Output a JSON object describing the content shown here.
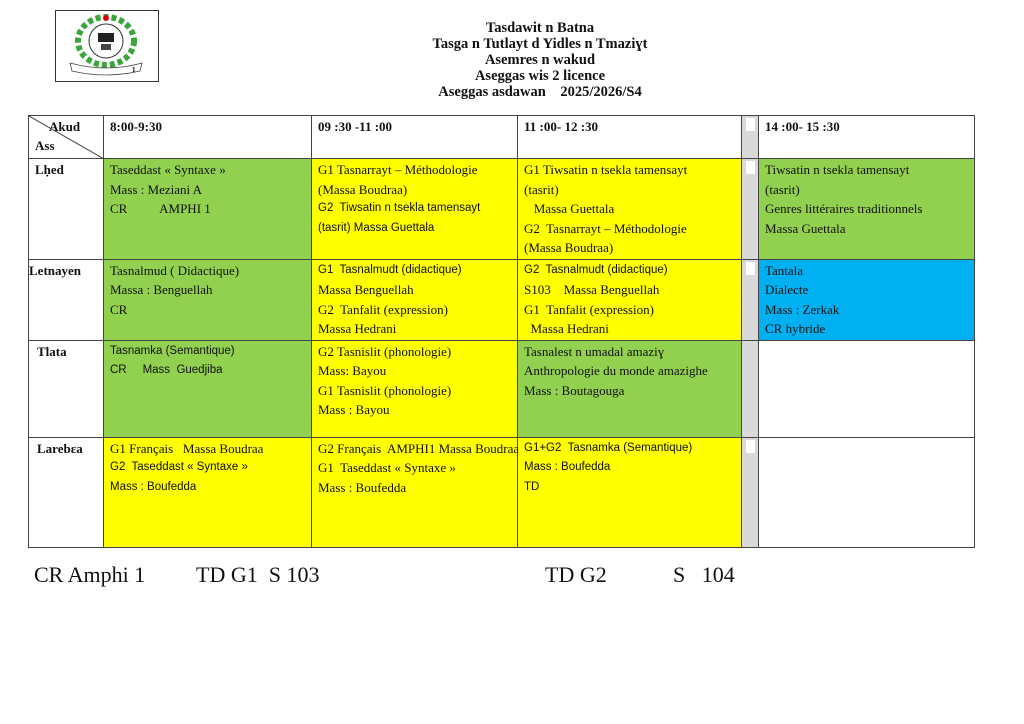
{
  "logo": {
    "text": "UNIVERSITE BATNA 1",
    "badge": "1"
  },
  "header": {
    "lines": [
      "Tasdawit n Batna",
      "Tasga n Tutlayt d Yidles n Tmaziɣt",
      "Asemres n wakud",
      "Aseggas wis 2 licence",
      "Aseggas asdawan    2025/2026/S4"
    ]
  },
  "table": {
    "corner": {
      "top": "Akud",
      "bottom": "Ass"
    },
    "columns": [
      "8:00-9:30",
      "09 :30 -11 :00",
      "11 :00- 12 :30",
      "14 :00- 15 :30"
    ],
    "colors": {
      "green": "#92d050",
      "yellow": "#ffff00",
      "blue": "#00b0f0",
      "gray": "#d9d9d9"
    },
    "rows": [
      {
        "day": "Lḥed",
        "cells": [
          {
            "color": "green",
            "lines": [
              "Taseddast « Syntaxe »",
              "Mass : Meziani A",
              "CR          AMPHI 1"
            ]
          },
          {
            "color": "yellow",
            "lines": [
              "G1 Tasnarrayt – Méthodologie",
              "(Massa Boudraa)",
              "G2  Tiwsatin n tsekla tamensayt",
              "(tasrit) Massa Guettala"
            ]
          },
          {
            "color": "yellow",
            "lines": [
              "G1 Tiwsatin n tsekla tamensayt",
              "(tasrit)",
              "   Massa Guettala",
              "G2  Tasnarrayt – Méthodologie",
              "(Massa Boudraa)"
            ]
          },
          {
            "color": "green",
            "lines": [
              "Tiwsatin n tsekla tamensayt",
              "(tasrit)",
              "Genres littéraires traditionnels",
              "Massa Guettala"
            ]
          }
        ]
      },
      {
        "day": "Letnayen",
        "cells": [
          {
            "color": "green",
            "lines": [
              "Tasnalmud ( Didactique)",
              "Massa : Benguellah",
              "CR"
            ]
          },
          {
            "color": "yellow",
            "lines": [
              "G1  Tasnalmudt (didactique)",
              "Massa Benguellah",
              "G2  Tanfalit (expression)",
              "Massa Hedrani"
            ]
          },
          {
            "color": "yellow",
            "lines": [
              "G2  Tasnalmudt (didactique)",
              "S103    Massa Benguellah",
              "G1  Tanfalit (expression)",
              "  Massa Hedrani"
            ]
          },
          {
            "color": "blue",
            "lines": [
              "Tantala",
              "Dialecte",
              "Mass : Zerkak",
              "CR hybride"
            ]
          }
        ]
      },
      {
        "day": "Tlata",
        "cells": [
          {
            "color": "green",
            "lines": [
              "Tasnamka (Semantique)",
              "CR     Mass  Guedjiba"
            ]
          },
          {
            "color": "yellow",
            "lines": [
              "G2 Tasnislit (phonologie)",
              "Mass: Bayou",
              "G1 Tasnislit (phonologie)",
              "Mass : Bayou"
            ]
          },
          {
            "color": "green",
            "lines": [
              "Tasnalest n umadal amaziɣ",
              "Anthropologie du monde amazighe",
              "Mass : Boutagouga"
            ]
          },
          {
            "color": "white",
            "lines": []
          }
        ]
      },
      {
        "day": "Larebɛa",
        "cells": [
          {
            "color": "yellow",
            "lines": [
              "G1 Français   Massa Boudraa",
              "G2  Taseddast « Syntaxe »",
              "Mass : Boufedda"
            ]
          },
          {
            "color": "yellow",
            "lines": [
              "G2 Français  AMPHI1 Massa Boudraa",
              "G1  Taseddast « Syntaxe »",
              "Mass : Boufedda"
            ]
          },
          {
            "color": "yellow",
            "lines": [
              "G1+G2  Tasnamka (Semantique)",
              "Mass : Boufedda",
              "TD"
            ]
          },
          {
            "color": "white",
            "lines": []
          }
        ]
      }
    ]
  },
  "footer": {
    "items": [
      "CR Amphi 1",
      "TD G1  S 103",
      "TD G2",
      "S   104"
    ]
  }
}
